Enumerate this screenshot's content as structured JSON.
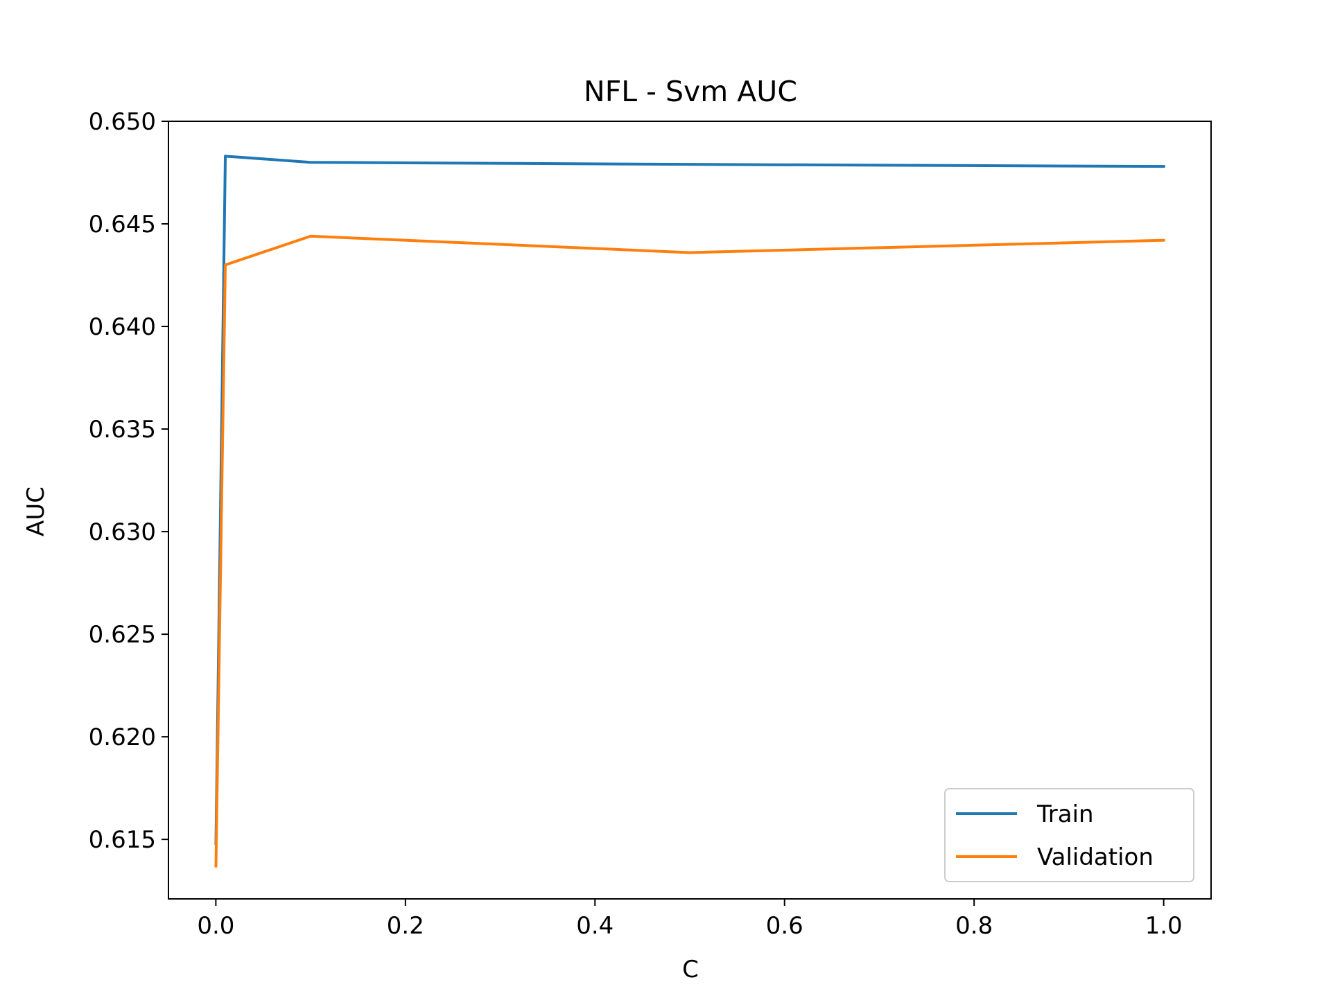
{
  "chart_data": {
    "type": "line",
    "title": "NFL - Svm AUC",
    "xlabel": "C",
    "ylabel": "AUC",
    "xlim": [
      -0.05,
      1.05
    ],
    "ylim": [
      0.6121,
      0.65
    ],
    "xticks": [
      0.0,
      0.2,
      0.4,
      0.6,
      0.8,
      1.0
    ],
    "xtick_labels": [
      "0.0",
      "0.2",
      "0.4",
      "0.6",
      "0.8",
      "1.0"
    ],
    "yticks": [
      0.615,
      0.62,
      0.625,
      0.63,
      0.635,
      0.64,
      0.645,
      0.65
    ],
    "ytick_labels": [
      "0.615",
      "0.620",
      "0.625",
      "0.630",
      "0.635",
      "0.640",
      "0.645",
      "0.650"
    ],
    "grid": false,
    "legend_position": "lower-right",
    "series": [
      {
        "name": "Train",
        "color": "#1f77b4",
        "x": [
          0.0001,
          0.01,
          0.1,
          0.5,
          1.0
        ],
        "y": [
          0.6148,
          0.6483,
          0.648,
          0.6479,
          0.6478
        ]
      },
      {
        "name": "Validation",
        "color": "#ff7f0e",
        "x": [
          0.0001,
          0.01,
          0.1,
          0.5,
          1.0
        ],
        "y": [
          0.6137,
          0.643,
          0.6444,
          0.6436,
          0.6442
        ]
      }
    ]
  }
}
